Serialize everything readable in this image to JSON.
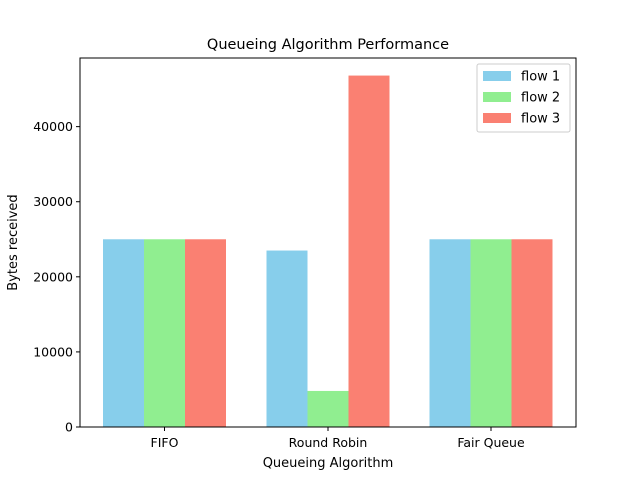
{
  "chart_data": {
    "type": "bar",
    "title": "Queueing Algorithm Performance",
    "xlabel": "Queueing Algorithm",
    "ylabel": "Bytes received",
    "categories": [
      "FIFO",
      "Round Robin",
      "Fair Queue"
    ],
    "series": [
      {
        "name": "flow 1",
        "color": "#87CEEB",
        "values": [
          25000,
          23500,
          25000
        ]
      },
      {
        "name": "flow 2",
        "color": "#90EE90",
        "values": [
          25000,
          4800,
          25000
        ]
      },
      {
        "name": "flow 3",
        "color": "#FA8072",
        "values": [
          25000,
          46800,
          25000
        ]
      }
    ],
    "ylim": [
      0,
      49140
    ],
    "yticks": [
      0,
      10000,
      20000,
      30000,
      40000
    ],
    "ytick_labels": [
      "0",
      "10000",
      "20000",
      "30000",
      "40000"
    ],
    "grid": false,
    "legend": "top-right"
  }
}
